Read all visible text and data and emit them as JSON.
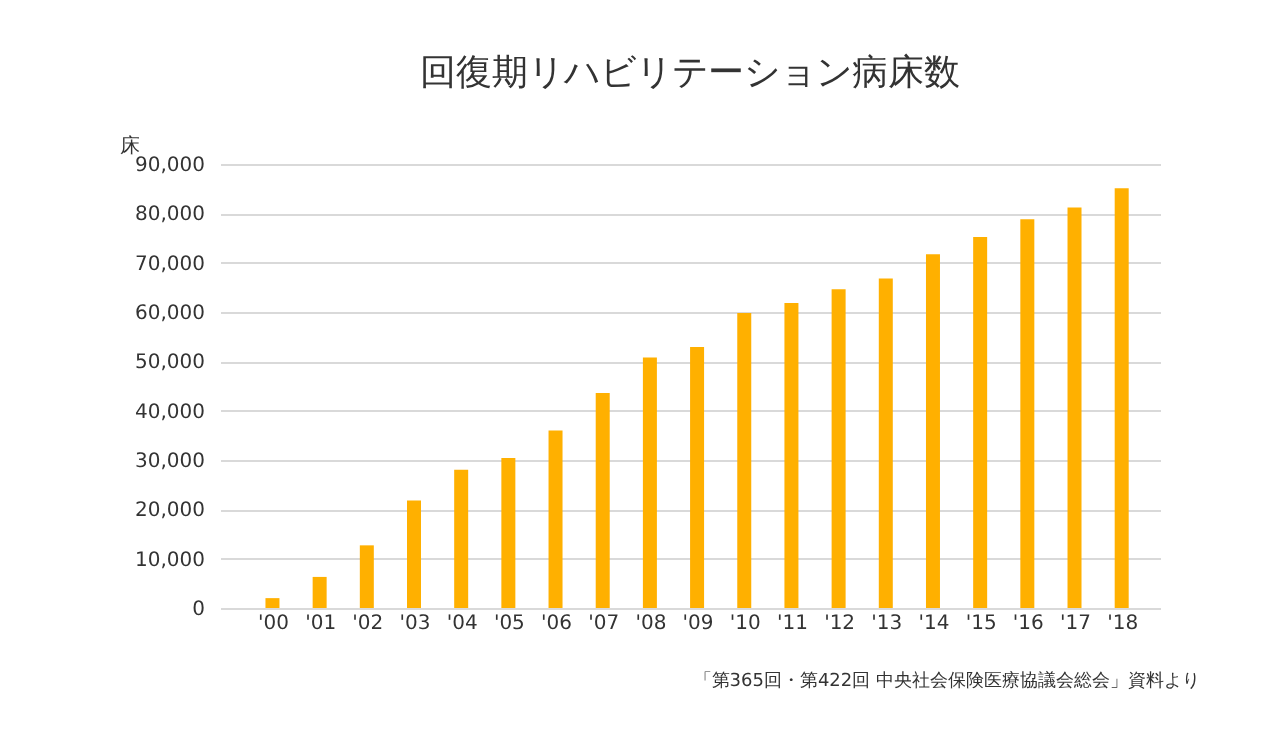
{
  "chart_data": {
    "type": "bar",
    "title": "回復期リハビリテーション病床数",
    "ylabel": "床",
    "categories": [
      "'00",
      "'01",
      "'02",
      "'03",
      "'04",
      "'05",
      "'06",
      "'07",
      "'08",
      "'09",
      "'10",
      "'11",
      "'12",
      "'13",
      "'14",
      "'15",
      "'16",
      "'17",
      "'18"
    ],
    "values": [
      2000,
      6300,
      12700,
      21800,
      28000,
      30400,
      36000,
      43600,
      50800,
      52900,
      59800,
      61800,
      64600,
      66800,
      71700,
      75200,
      78800,
      81200,
      85100
    ],
    "color": "#ffb000",
    "ylim": [
      0,
      90000
    ],
    "yticks": [
      0,
      {
        "value": 10000,
        "label": "10,000"
      },
      {
        "value": 20000,
        "label": "20,000"
      },
      {
        "value": 30000,
        "label": "30,000"
      },
      {
        "value": 40000,
        "label": "40,000"
      },
      {
        "value": 50000,
        "label": "50,000"
      },
      {
        "value": 60000,
        "label": "60,000"
      },
      {
        "value": 70000,
        "label": "70,000"
      },
      {
        "value": 80000,
        "label": "80,000"
      },
      {
        "value": 90000,
        "label": "90,000"
      }
    ],
    "grid": "y",
    "annotations": [
      "「第365回・第422回 中央社会保険医療協議会総会」資料より"
    ]
  }
}
